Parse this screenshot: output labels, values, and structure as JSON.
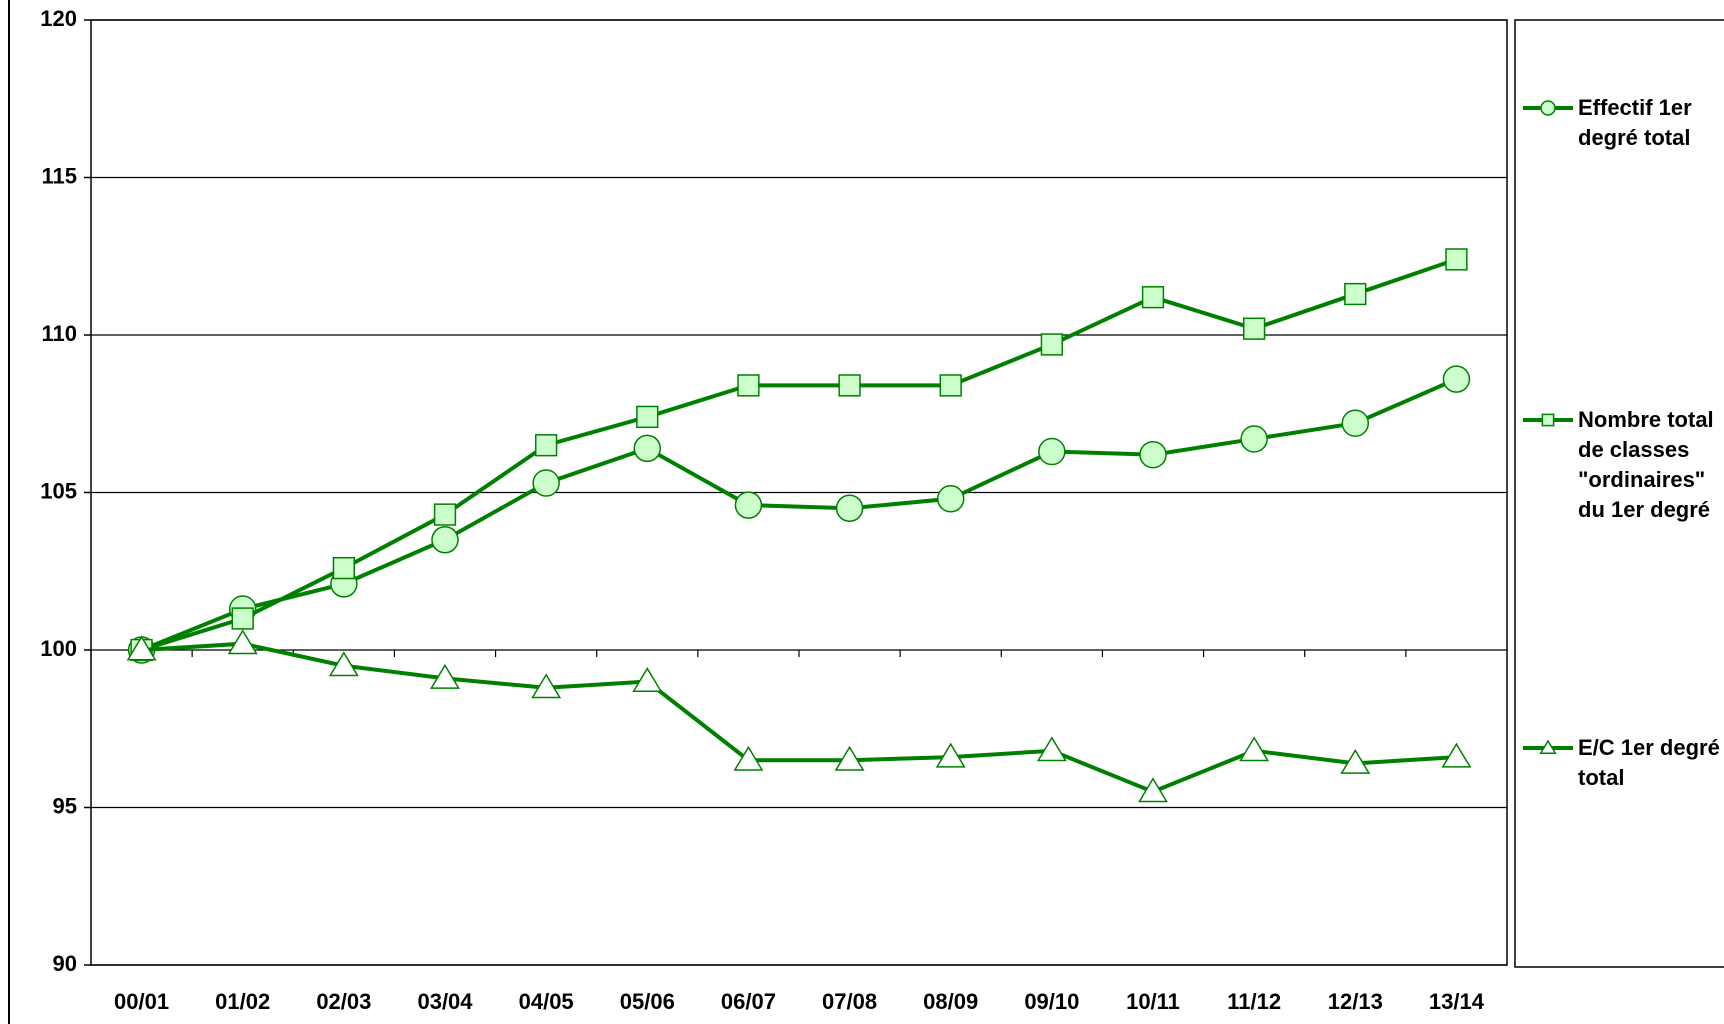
{
  "chart_data": {
    "type": "line",
    "categories": [
      "00/01",
      "01/02",
      "02/03",
      "03/04",
      "04/05",
      "05/06",
      "06/07",
      "07/08",
      "08/09",
      "09/10",
      "10/11",
      "11/12",
      "12/13",
      "13/14"
    ],
    "series": [
      {
        "name": "Effectif 1er degré total",
        "color": "#008000",
        "marker": "circle",
        "values": [
          100,
          101.3,
          102.1,
          103.5,
          105.3,
          106.4,
          104.6,
          104.5,
          104.8,
          106.3,
          106.2,
          106.7,
          107.2,
          108.6
        ]
      },
      {
        "name": "Nombre total de classes \"ordinaires\" du 1er degré",
        "color": "#008000",
        "marker": "square",
        "values": [
          100,
          101.0,
          102.6,
          104.3,
          106.5,
          107.4,
          108.4,
          108.4,
          108.4,
          109.7,
          111.2,
          110.2,
          111.3,
          112.4
        ]
      },
      {
        "name": "E/C 1er degré total",
        "color": "#008000",
        "marker": "triangle",
        "values": [
          100,
          100.2,
          99.5,
          99.1,
          98.8,
          99.0,
          96.5,
          96.5,
          96.6,
          96.8,
          95.5,
          96.8,
          96.4,
          96.6
        ]
      }
    ],
    "ylim": [
      90,
      120
    ],
    "yticks": [
      90,
      95,
      100,
      105,
      110,
      115,
      120
    ],
    "grid": true,
    "legend": "right"
  }
}
